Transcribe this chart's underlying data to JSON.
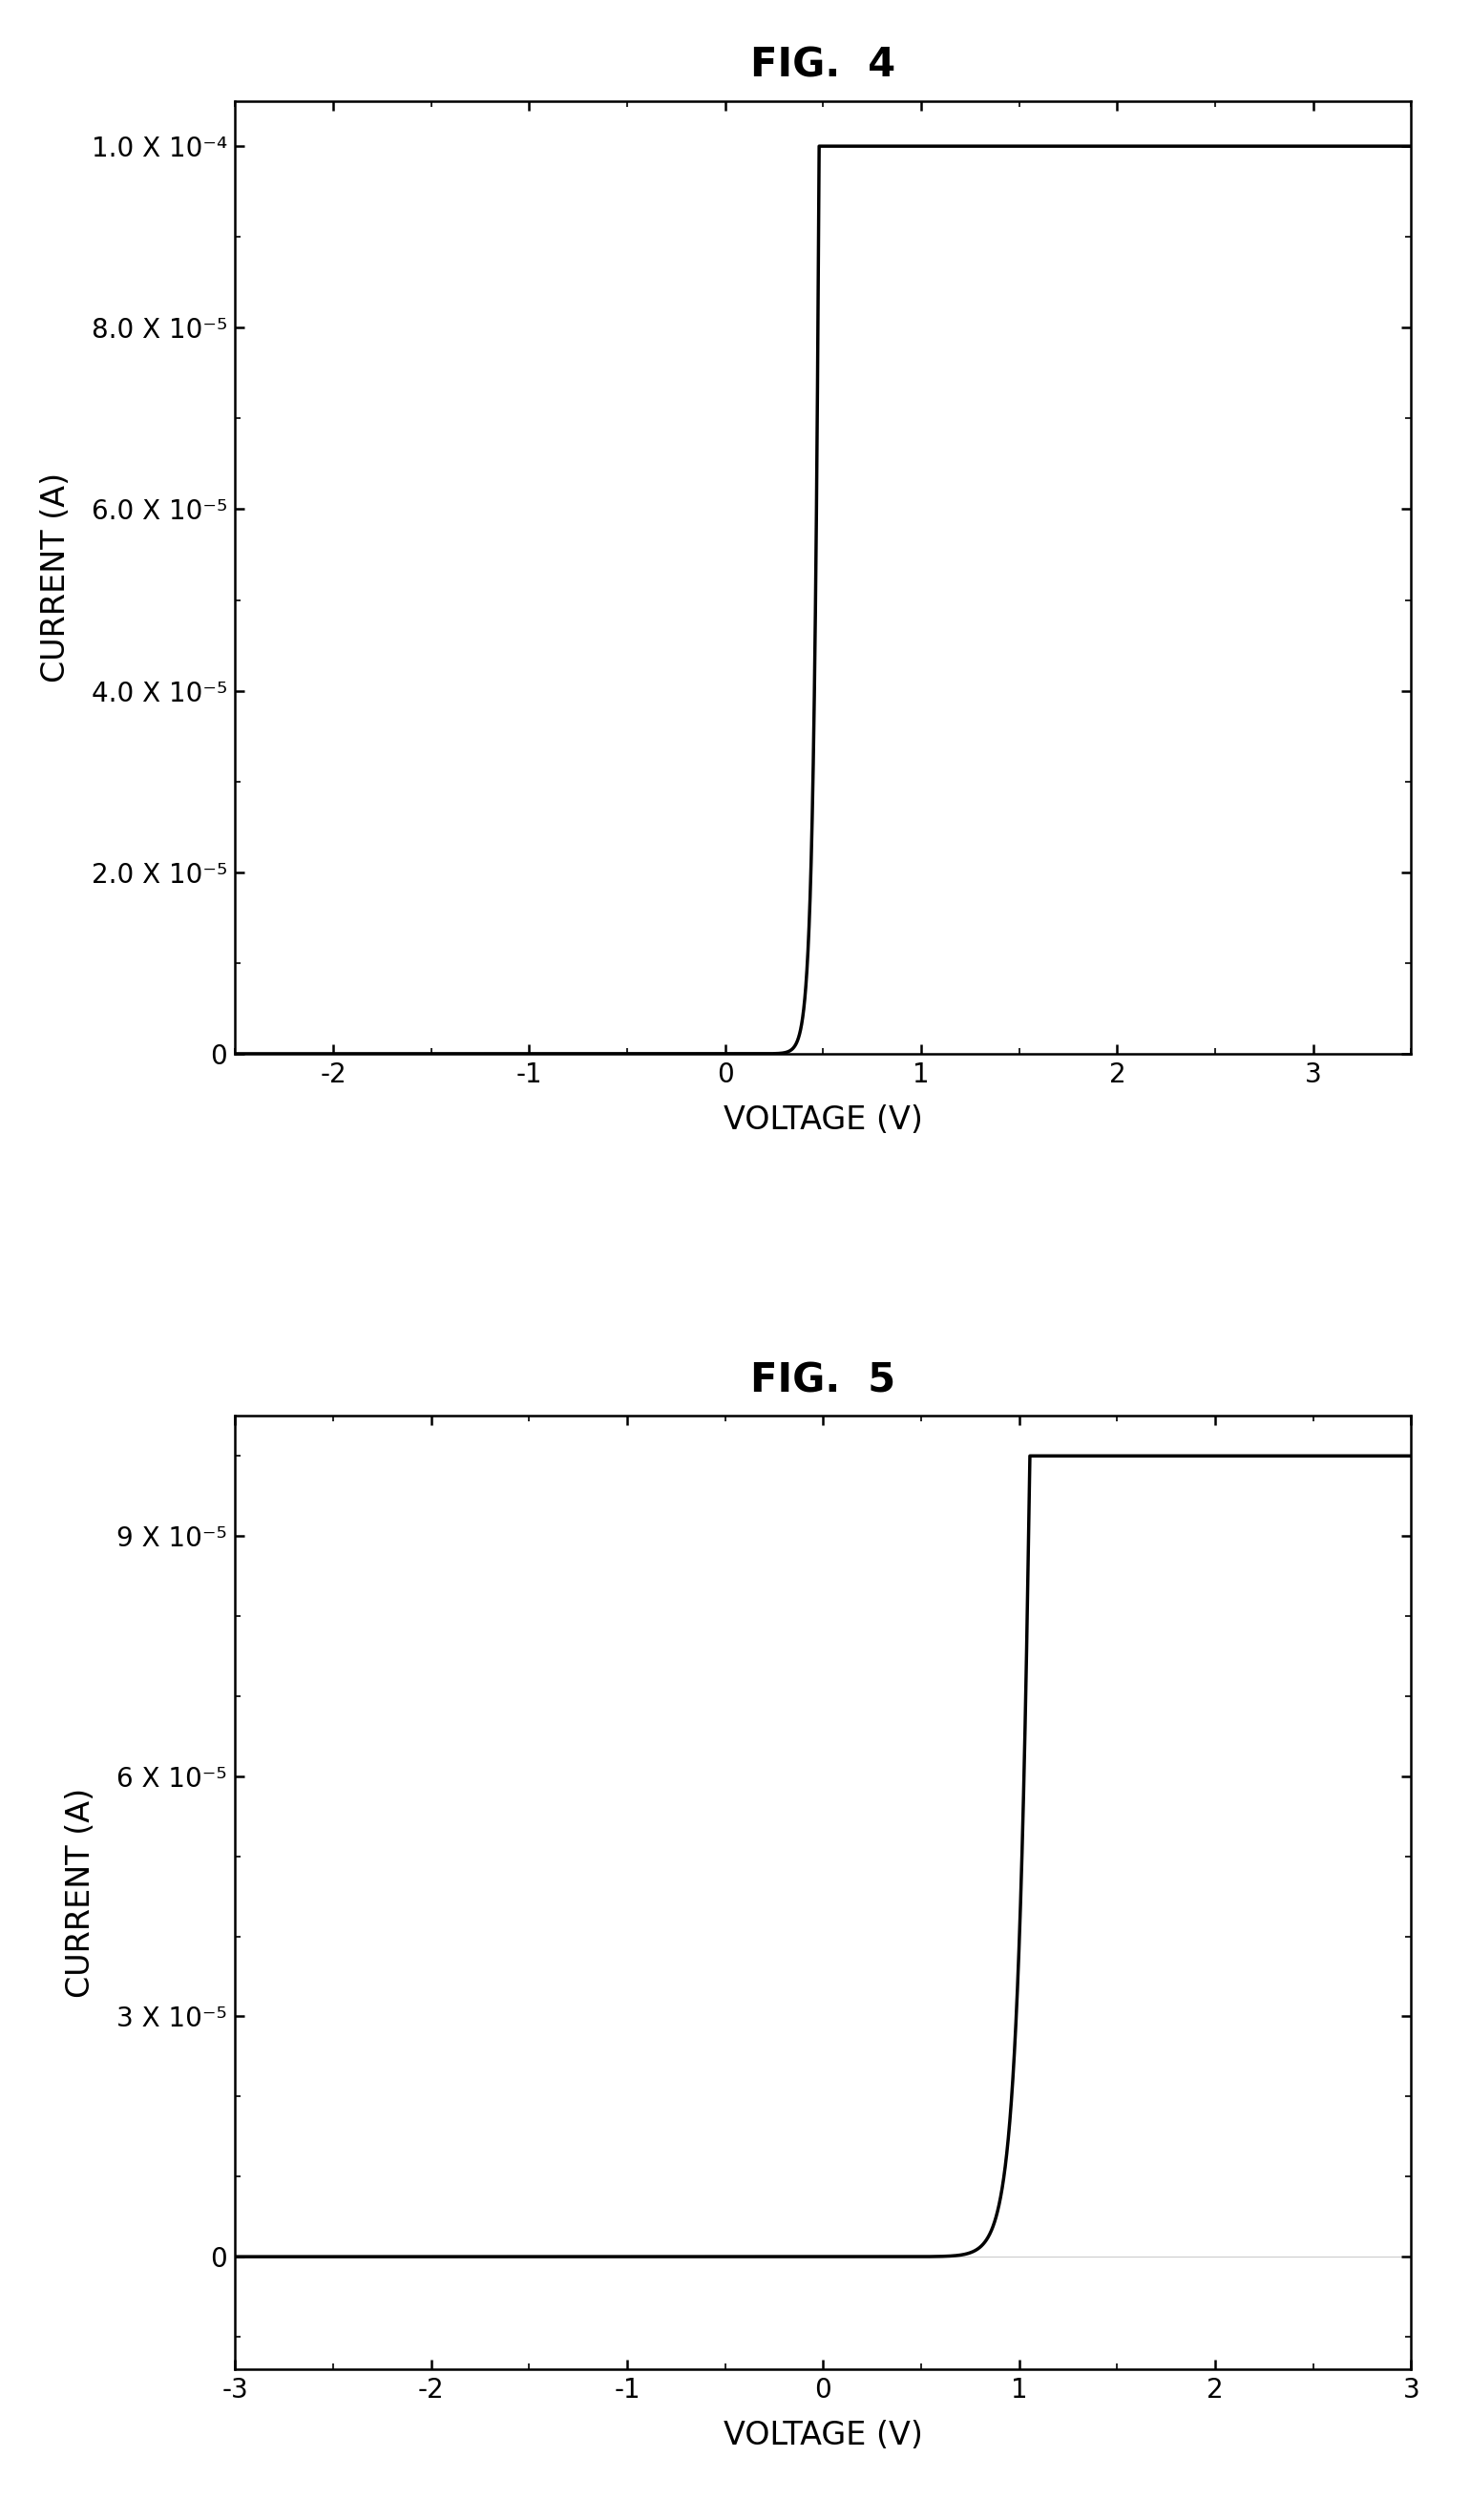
{
  "fig4": {
    "title": "FIG.  4",
    "xlabel": "VOLTAGE (V)",
    "ylabel": "CURRENT (A)",
    "xlim": [
      -2.5,
      3.5
    ],
    "ylim": [
      0,
      0.000105
    ],
    "xticks": [
      -2,
      -1,
      0,
      1,
      2,
      3
    ],
    "ytick_values": [
      0,
      2e-05,
      4e-05,
      6e-05,
      8e-05,
      0.0001
    ],
    "ytick_labels": [
      "0",
      "2.0 X 10-5",
      "4.0 X 10-5",
      "6.0 X 10-5",
      "8.0 X 10-5",
      "1.0 X 10-4"
    ],
    "diode_I0": 1e-12,
    "diode_n": 1.0,
    "diode_VT": 0.026,
    "Imax": 0.0001
  },
  "fig5": {
    "title": "FIG.  5",
    "xlabel": "VOLTAGE (V)",
    "ylabel": "CURRENT (A)",
    "xlim": [
      -3,
      3
    ],
    "ylim": [
      -1.4e-05,
      0.000105
    ],
    "xticks": [
      -3,
      -2,
      -1,
      0,
      1,
      2,
      3
    ],
    "ytick_values": [
      0,
      3e-05,
      6e-05,
      9e-05
    ],
    "ytick_labels": [
      "0",
      "3 X 10-5",
      "6 X 10-5",
      "9 X 10-5"
    ],
    "diode_I0": 1e-12,
    "diode_n": 2.2,
    "diode_VT": 0.026,
    "Imax": 0.0001,
    "Irev": -1e-05
  },
  "line_color": "#000000",
  "line_width": 2.5,
  "background_color": "#ffffff",
  "title_fontsize": 30,
  "label_fontsize": 24,
  "tick_fontsize": 20
}
